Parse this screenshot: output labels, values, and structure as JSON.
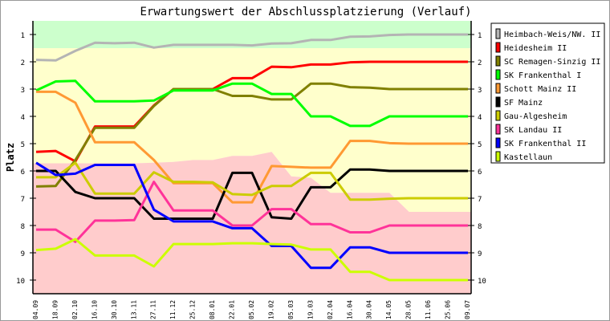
{
  "chart_data": {
    "type": "line",
    "title": "Erwartungswert der Abschlussplatzierung (Verlauf)",
    "ylabel": "Platz",
    "xlabel": "",
    "ylim": [
      0.5,
      10.5
    ],
    "y_inverted": true,
    "yticks": [
      1,
      2,
      3,
      4,
      5,
      6,
      7,
      8,
      9,
      10
    ],
    "x": [
      "04.09",
      "18.09",
      "02.10",
      "16.10",
      "30.10",
      "13.11",
      "27.11",
      "11.12",
      "25.12",
      "08.01",
      "22.01",
      "05.02",
      "19.02",
      "05.03",
      "19.03",
      "02.04",
      "16.04",
      "30.04",
      "14.05",
      "28.05",
      "11.06",
      "25.06",
      "09.07"
    ],
    "legend_position": "right",
    "zones": [
      {
        "name": "promotion",
        "color": "#ccffcc",
        "from": [
          0.5,
          0.5,
          0.5,
          0.5,
          0.5,
          0.5,
          0.5,
          0.5,
          0.5,
          0.5,
          0.5,
          0.5,
          0.5,
          0.5,
          0.5,
          0.5,
          0.5,
          0.5,
          0.5,
          0.5,
          0.5,
          0.5,
          0.5
        ],
        "to": [
          1.5,
          1.5,
          1.5,
          1.5,
          1.5,
          1.5,
          1.5,
          1.5,
          1.5,
          1.5,
          1.5,
          1.5,
          1.5,
          1.5,
          1.5,
          1.5,
          1.5,
          1.5,
          1.5,
          1.5,
          1.5,
          1.5,
          1.5
        ]
      },
      {
        "name": "midfield",
        "color": "#ffffcc",
        "from": [
          1.5,
          1.5,
          1.5,
          1.5,
          1.5,
          1.5,
          1.5,
          1.5,
          1.5,
          1.5,
          1.5,
          1.5,
          1.5,
          1.5,
          1.5,
          1.5,
          1.5,
          1.5,
          1.5,
          1.5,
          1.5,
          1.5,
          1.5
        ],
        "to": [
          5.72,
          5.72,
          5.72,
          5.72,
          5.72,
          5.72,
          5.7,
          5.67,
          5.6,
          5.6,
          5.45,
          5.45,
          5.3,
          6.2,
          6.25,
          6.8,
          6.8,
          6.8,
          6.8,
          7.5,
          7.5,
          7.5,
          7.5
        ]
      },
      {
        "name": "relegation",
        "color": "#ffcccc",
        "from": [
          5.72,
          5.72,
          5.72,
          5.72,
          5.72,
          5.72,
          5.7,
          5.67,
          5.6,
          5.6,
          5.45,
          5.45,
          5.3,
          6.2,
          6.25,
          6.8,
          6.8,
          6.8,
          6.8,
          7.5,
          7.5,
          7.5,
          7.5
        ],
        "to": [
          10.5,
          10.5,
          10.5,
          10.5,
          10.5,
          10.5,
          10.5,
          10.5,
          10.5,
          10.5,
          10.5,
          10.5,
          10.5,
          10.5,
          10.5,
          10.5,
          10.5,
          10.5,
          10.5,
          10.5,
          10.5,
          10.5,
          10.5
        ]
      }
    ],
    "series": [
      {
        "name": "Heimbach-Weis/NW. II",
        "color": "#b4b4b4",
        "values": [
          1.93,
          1.95,
          1.6,
          1.3,
          1.32,
          1.3,
          1.48,
          1.38,
          1.38,
          1.38,
          1.38,
          1.4,
          1.33,
          1.32,
          1.2,
          1.2,
          1.08,
          1.07,
          1.02,
          1,
          1,
          1,
          1
        ]
      },
      {
        "name": "Heidesheim II",
        "color": "#ff0000",
        "values": [
          5.3,
          5.27,
          5.65,
          4.37,
          4.37,
          4.37,
          3.6,
          3,
          3,
          3,
          2.6,
          2.6,
          2.18,
          2.2,
          2.1,
          2.1,
          2.02,
          2,
          2,
          2,
          2,
          2,
          2
        ]
      },
      {
        "name": "SC Remagen-Sinzig II",
        "color": "#808000",
        "values": [
          6.57,
          6.55,
          5.6,
          4.42,
          4.42,
          4.42,
          3.62,
          3,
          3,
          3,
          3.25,
          3.25,
          3.38,
          3.38,
          2.8,
          2.8,
          2.93,
          2.95,
          3,
          3,
          3,
          3,
          3
        ]
      },
      {
        "name": "SK Frankenthal I",
        "color": "#00ff00",
        "values": [
          3.05,
          2.72,
          2.7,
          3.45,
          3.45,
          3.45,
          3.42,
          3.05,
          3.05,
          3.05,
          2.8,
          2.8,
          3.18,
          3.18,
          4,
          4,
          4.35,
          4.35,
          4,
          4,
          4,
          4,
          4
        ]
      },
      {
        "name": "Schott Mainz II",
        "color": "#ff9933",
        "values": [
          3.1,
          3.1,
          3.5,
          4.95,
          4.95,
          4.95,
          5.6,
          6.45,
          6.45,
          6.45,
          7.15,
          7.15,
          5.82,
          5.85,
          5.88,
          5.88,
          4.9,
          4.9,
          4.98,
          5,
          5,
          5,
          5
        ]
      },
      {
        "name": "SF Mainz",
        "color": "#000000",
        "values": [
          6,
          6,
          6.77,
          7,
          7,
          7,
          7.75,
          7.75,
          7.75,
          7.75,
          6.07,
          6.07,
          7.7,
          7.75,
          6.6,
          6.6,
          5.95,
          5.95,
          6,
          6,
          6,
          6,
          6
        ]
      },
      {
        "name": "Gau-Algesheim",
        "color": "#cccc00",
        "values": [
          6.23,
          6.23,
          5.7,
          6.83,
          6.83,
          6.83,
          6.05,
          6.4,
          6.4,
          6.42,
          6.85,
          6.88,
          6.55,
          6.55,
          6.07,
          6.07,
          7.05,
          7.05,
          7.02,
          7,
          7,
          7,
          7
        ]
      },
      {
        "name": "SK Landau II",
        "color": "#ff3399",
        "values": [
          8.15,
          8.15,
          8.6,
          7.82,
          7.82,
          7.8,
          6.4,
          7.45,
          7.45,
          7.45,
          8,
          8,
          7.4,
          7.4,
          7.95,
          7.95,
          8.25,
          8.25,
          8,
          8,
          8,
          8,
          8
        ]
      },
      {
        "name": "SK Frankenthal II",
        "color": "#0000ff",
        "values": [
          5.7,
          6.15,
          6.1,
          5.78,
          5.78,
          5.78,
          7.42,
          7.85,
          7.85,
          7.85,
          8.1,
          8.1,
          8.75,
          8.75,
          9.55,
          9.55,
          8.8,
          8.8,
          9,
          9,
          9,
          9,
          9
        ]
      },
      {
        "name": "Kastellaun",
        "color": "#ccff00",
        "values": [
          8.9,
          8.85,
          8.5,
          9.1,
          9.1,
          9.1,
          9.5,
          8.68,
          8.68,
          8.68,
          8.65,
          8.65,
          8.68,
          8.7,
          8.88,
          8.88,
          9.7,
          9.7,
          10,
          10,
          10,
          10,
          10
        ]
      }
    ]
  }
}
